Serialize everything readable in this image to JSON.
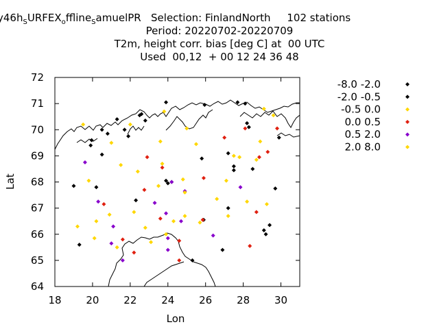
{
  "title": {
    "line1": {
      "model_a": "y46h",
      "sub_a": "S",
      "model_b": "URFEX",
      "sub_b": "o",
      "model_c": "ffline",
      "sub_c": "S",
      "model_d": "amuelPR",
      "selection": "   Selection: FinlandNorth     102 stations"
    },
    "line2": "Period: 20220702-20220709",
    "line3": "T2m, height corr. bias [deg C] at  00 UTC",
    "line4": "Used  00,12  + 00 12 24 36 48"
  },
  "chart_data": {
    "type": "scatter",
    "xlabel": "Lon",
    "ylabel": "Lat",
    "xlim": [
      18,
      31
    ],
    "ylim": [
      64,
      72
    ],
    "xticks": [
      18,
      20,
      22,
      24,
      26,
      28,
      30
    ],
    "yticks": [
      64,
      65,
      66,
      67,
      68,
      69,
      70,
      71,
      72
    ],
    "legend_position": "right",
    "series": [
      {
        "name": "-8.0 -2.0",
        "color": "#000000",
        "points": [
          [
            19.9,
            69.4
          ],
          [
            20.5,
            69.05
          ],
          [
            21.3,
            70.4
          ],
          [
            22.5,
            70.55
          ],
          [
            23.9,
            71.05
          ],
          [
            22.8,
            70.35
          ],
          [
            20.2,
            67.8
          ],
          [
            19.0,
            67.85
          ],
          [
            19.3,
            65.6
          ],
          [
            22.3,
            67.3
          ],
          [
            23.9,
            68.05
          ],
          [
            24.0,
            67.95
          ],
          [
            25.8,
            68.9
          ],
          [
            25.95,
            70.95
          ],
          [
            25.9,
            66.55
          ],
          [
            26.9,
            65.4
          ],
          [
            27.2,
            67.0
          ],
          [
            27.2,
            69.1
          ],
          [
            27.5,
            68.6
          ],
          [
            27.5,
            68.45
          ],
          [
            28.1,
            71.0
          ],
          [
            28.2,
            70.25
          ],
          [
            28.5,
            68.5
          ],
          [
            29.1,
            66.15
          ],
          [
            29.2,
            66.0
          ],
          [
            29.4,
            66.35
          ],
          [
            29.7,
            67.75
          ],
          [
            29.9,
            69.7
          ],
          [
            25.3,
            65.0
          ],
          [
            20.8,
            69.85
          ],
          [
            21.7,
            70.0
          ]
        ]
      },
      {
        "name": "-2.0 -0.5",
        "color": "#000000",
        "points": [
          [
            19.95,
            69.6
          ],
          [
            20.5,
            70.0
          ],
          [
            22.6,
            70.6
          ],
          [
            24.2,
            68.0
          ],
          [
            27.7,
            71.05
          ],
          [
            28.3,
            70.1
          ],
          [
            21.9,
            69.75
          ]
        ]
      },
      {
        "name": "-0.5 0.0",
        "color": "#ffd700",
        "points": [
          [
            19.5,
            70.2
          ],
          [
            19.8,
            68.05
          ],
          [
            19.2,
            66.3
          ],
          [
            20.2,
            66.5
          ],
          [
            20.1,
            65.85
          ],
          [
            20.9,
            66.75
          ],
          [
            21.5,
            68.65
          ],
          [
            22.2,
            66.85
          ],
          [
            22.4,
            68.4
          ],
          [
            22.8,
            66.25
          ],
          [
            23.1,
            65.7
          ],
          [
            23.6,
            69.55
          ],
          [
            23.7,
            68.7
          ],
          [
            23.8,
            70.7
          ],
          [
            23.5,
            67.85
          ],
          [
            24.3,
            66.5
          ],
          [
            24.9,
            66.7
          ],
          [
            25.0,
            70.05
          ],
          [
            25.5,
            69.45
          ],
          [
            25.7,
            66.45
          ],
          [
            26.6,
            67.35
          ],
          [
            27.1,
            68.05
          ],
          [
            27.2,
            66.7
          ],
          [
            27.5,
            69.0
          ],
          [
            27.8,
            68.95
          ],
          [
            28.2,
            67.25
          ],
          [
            28.7,
            68.85
          ],
          [
            28.9,
            69.55
          ],
          [
            29.1,
            70.8
          ],
          [
            29.25,
            67.15
          ],
          [
            29.6,
            70.55
          ],
          [
            21.3,
            65.5
          ],
          [
            22.0,
            70.2
          ],
          [
            23.9,
            66.0
          ],
          [
            24.8,
            68.1
          ]
        ]
      },
      {
        "name": "0.0 0.5",
        "color": "#e02010",
        "points": [
          [
            20.6,
            67.15
          ],
          [
            21.6,
            65.8
          ],
          [
            22.2,
            65.3
          ],
          [
            22.75,
            67.7
          ],
          [
            22.9,
            68.95
          ],
          [
            23.6,
            66.6
          ],
          [
            23.7,
            68.55
          ],
          [
            24.6,
            65.75
          ],
          [
            24.6,
            65.0
          ],
          [
            25.9,
            68.15
          ],
          [
            25.85,
            66.55
          ],
          [
            27.0,
            69.7
          ],
          [
            28.1,
            70.05
          ],
          [
            28.35,
            65.55
          ],
          [
            28.7,
            66.85
          ],
          [
            28.85,
            68.95
          ],
          [
            29.3,
            69.15
          ],
          [
            29.8,
            70.05
          ]
        ]
      },
      {
        "name": "0.5 2.0",
        "color": "#8800cc",
        "points": [
          [
            19.6,
            68.75
          ],
          [
            20.3,
            67.25
          ],
          [
            21.0,
            65.65
          ],
          [
            21.1,
            66.3
          ],
          [
            21.6,
            65.0
          ],
          [
            23.3,
            67.2
          ],
          [
            23.9,
            66.8
          ],
          [
            24.0,
            65.85
          ],
          [
            24.0,
            65.4
          ],
          [
            24.2,
            68.0
          ],
          [
            24.7,
            66.5
          ],
          [
            24.9,
            67.65
          ],
          [
            26.4,
            65.95
          ],
          [
            27.85,
            67.8
          ]
        ]
      },
      {
        "name": "2.0 8.0",
        "color": "#ffd700",
        "points": [
          [
            21.0,
            69.5
          ],
          [
            24.9,
            67.6
          ]
        ]
      }
    ]
  }
}
